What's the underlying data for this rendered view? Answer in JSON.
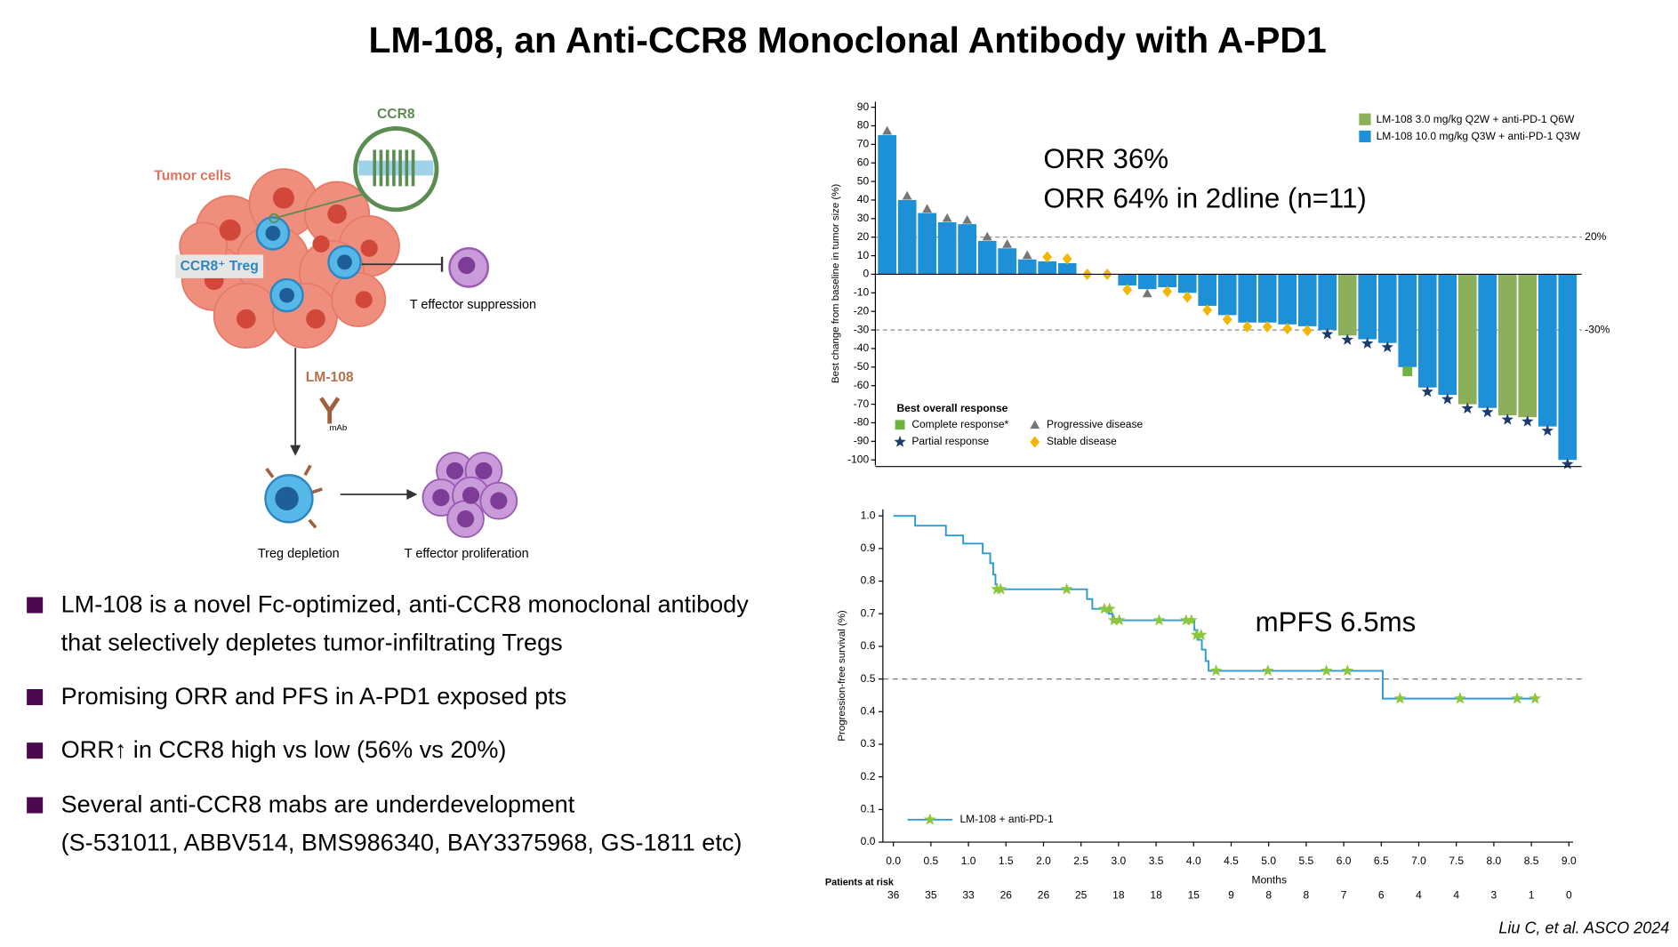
{
  "title": "LM-108, an Anti-CCR8 Monoclonal Antibody with A-PD1",
  "diagram": {
    "ccr8": "CCR8",
    "tumor_cells": "Tumor cells",
    "treg": "CCR8⁺ Treg",
    "suppression": "T effector suppression",
    "drug": "LM-108",
    "mab": "mAb",
    "depletion": "Treg depletion",
    "proliferation": "T effector proliferation"
  },
  "bullets": [
    [
      "LM-108 is a novel Fc-optimized, anti-CCR8 monoclonal antibody",
      "that selectively depletes tumor-infiltrating Tregs"
    ],
    [
      "Promising ORR and PFS in A-PD1 exposed pts"
    ],
    [
      "ORR↑ in CCR8 high vs low (56% vs 20%)"
    ],
    [
      "Several anti-CCR8 mabs are underdevelopment",
      "(S-531011, ABBV514, BMS986340, BAY3375968, GS-1811 etc)"
    ]
  ],
  "citation": "Liu C, et al. ASCO 2024",
  "chart_data": [
    {
      "type": "bar",
      "y_label": "Best change from baseline in tumor size (%)",
      "annotations": [
        "ORR 36%",
        "ORR 64% in 2dline (n=11)"
      ],
      "series": [
        {
          "name": "LM-108 3.0 mg/kg Q2W + anti-PD-1 Q6W",
          "color": "#8cb05a",
          "values": [
            null,
            null,
            null,
            null,
            null,
            null,
            null,
            null,
            null,
            null,
            null,
            null,
            null,
            null,
            null,
            null,
            null,
            null,
            null,
            null,
            null,
            null,
            null,
            -33,
            null,
            null,
            null,
            null,
            null,
            -70,
            null,
            -76,
            -77,
            null,
            null
          ]
        },
        {
          "name": "LM-108 10.0 mg/kg Q3W + anti-PD-1 Q3W",
          "color": "#1e90d8",
          "values": [
            75,
            40,
            33,
            28,
            27,
            18,
            14,
            8,
            7,
            6,
            0,
            0,
            -6,
            -8,
            -7,
            -10,
            -17,
            -22,
            -26,
            -26,
            -27,
            -28,
            -30,
            null,
            -35,
            -37,
            -50,
            -61,
            -65,
            null,
            -72,
            null,
            null,
            -82,
            -100
          ]
        }
      ],
      "response": [
        "Progressive disease",
        "Progressive disease",
        "Progressive disease",
        "Progressive disease",
        "Progressive disease",
        "Progressive disease",
        "Progressive disease",
        "Progressive disease",
        "Stable disease",
        "Stable disease",
        "Stable disease",
        "Stable disease",
        "Stable disease",
        "Progressive disease",
        "Stable disease",
        "Stable disease",
        "Stable disease",
        "Stable disease",
        "Stable disease",
        "Stable disease",
        "Stable disease",
        "Stable disease",
        "Partial response",
        "Partial response",
        "Partial response",
        "Partial response",
        "Complete response*",
        "Partial response",
        "Partial response",
        "Partial response",
        "Partial response",
        "Partial response",
        "Partial response",
        "Partial response",
        "Partial response"
      ],
      "response_legend": {
        "title": "Best overall response",
        "items": [
          {
            "name": "Complete response*",
            "shape": "square",
            "color": "#6cb33f"
          },
          {
            "name": "Progressive disease",
            "shape": "triangle",
            "color": "#777777"
          },
          {
            "name": "Partial response",
            "shape": "star",
            "color": "#1b3c6b"
          },
          {
            "name": "Stable disease",
            "shape": "diamond",
            "color": "#f2b705"
          }
        ]
      },
      "reference_lines": [
        {
          "value": 20,
          "label": "20%"
        },
        {
          "value": -30,
          "label": "-30%"
        }
      ],
      "ylim": [
        -103,
        93
      ],
      "yticks": [
        -100,
        -90,
        -80,
        -70,
        -60,
        -50,
        -40,
        -30,
        -20,
        -10,
        0,
        10,
        20,
        30,
        40,
        50,
        60,
        70,
        80,
        90
      ]
    },
    {
      "type": "km",
      "x_label": "Months",
      "y_label": "Progression-free survival (%)",
      "annotations": [
        "mPFS 6.5ms"
      ],
      "series": [
        {
          "name": "LM-108 + anti-PD-1",
          "color": "#2a9bd4",
          "step": "post",
          "x": [
            0,
            0.29,
            0.7,
            0.93,
            1.19,
            1.29,
            1.33,
            1.36,
            1.38,
            2.58,
            2.65,
            2.87,
            2.92,
            4.01,
            4.05,
            4.11,
            4.16,
            4.2,
            6.52,
            8.55
          ],
          "values": [
            1,
            0.97,
            0.94,
            0.915,
            0.885,
            0.855,
            0.82,
            0.79,
            0.775,
            0.745,
            0.715,
            0.7,
            0.68,
            0.65,
            0.62,
            0.59,
            0.555,
            0.525,
            0.44,
            0.44
          ]
        }
      ],
      "censored": {
        "color": "#8cc63f",
        "x": [
          1.38,
          1.43,
          2.31,
          2.81,
          2.88,
          2.94,
          3.01,
          3.54,
          3.9,
          3.97,
          4.04,
          4.1,
          4.3,
          4.99,
          5.77,
          6.05,
          6.75,
          7.55,
          8.31,
          8.55
        ],
        "values": [
          0.775,
          0.775,
          0.775,
          0.715,
          0.715,
          0.68,
          0.68,
          0.68,
          0.68,
          0.68,
          0.635,
          0.635,
          0.525,
          0.525,
          0.525,
          0.525,
          0.44,
          0.44,
          0.44,
          0.44
        ]
      },
      "reference_lines": [
        {
          "value": 0.5
        }
      ],
      "xlim": [
        -0.14,
        9.17
      ],
      "xticks": [
        {
          "value": 0,
          "label": "0.0"
        },
        0.5,
        {
          "value": 1,
          "label": "1.0"
        },
        1.5,
        {
          "value": 2,
          "label": "2.0"
        },
        2.5,
        {
          "value": 3,
          "label": "3.0"
        },
        3.5,
        {
          "value": 4,
          "label": "4.0"
        },
        4.5,
        {
          "value": 5,
          "label": "5.0"
        },
        5.5,
        {
          "value": 6,
          "label": "6.0"
        },
        6.5,
        {
          "value": 7,
          "label": "7.0"
        },
        7.5,
        {
          "value": 8,
          "label": "8.0"
        },
        8.5,
        {
          "value": 9,
          "label": "9.0"
        }
      ],
      "ylim": [
        0,
        1.02
      ],
      "yticks": [
        {
          "value": 0,
          "label": "0.0"
        },
        0.1,
        0.2,
        0.3,
        0.4,
        0.5,
        0.6,
        0.7,
        0.8,
        0.9,
        {
          "value": 1,
          "label": "1.0"
        }
      ],
      "risk_table": {
        "title": "Patients at risk",
        "counts": [
          36,
          35,
          33,
          26,
          26,
          25,
          18,
          18,
          15,
          9,
          8,
          8,
          7,
          6,
          4,
          4,
          3,
          1,
          0
        ]
      }
    }
  ]
}
